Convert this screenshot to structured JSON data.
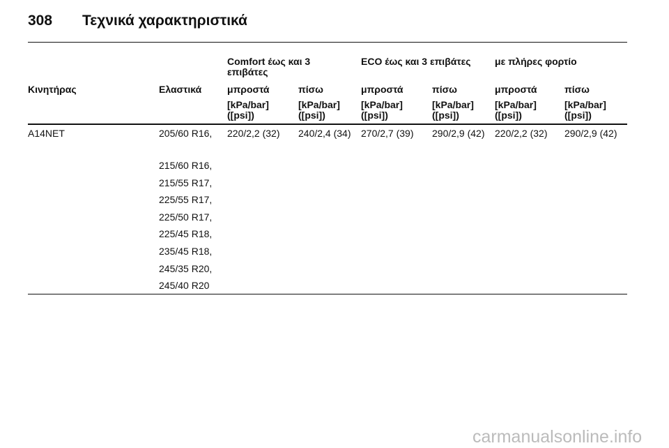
{
  "header": {
    "page_number": "308",
    "title": "Τεχνικά χαρακτηριστικά"
  },
  "table": {
    "group_headers": [
      "Comfort έως και 3 επιβάτες",
      "ECO έως και 3 επιβάτες",
      "με πλήρες φορτίο"
    ],
    "columns": [
      "Κινητήρας",
      "Ελαστικά",
      "μπροστά",
      "πίσω",
      "μπροστά",
      "πίσω",
      "μπροστά",
      "πίσω"
    ],
    "units": [
      "[kPa/bar] ([psi])",
      "[kPa/bar] ([psi])",
      "[kPa/bar] ([psi])",
      "[kPa/bar] ([psi])",
      "[kPa/bar] ([psi])",
      "[kPa/bar] ([psi])"
    ],
    "rows": [
      {
        "engine": "A14NET",
        "tyres": [
          "205/60 R16,",
          "215/60 R16,",
          "215/55 R17,",
          "225/55 R17,",
          "225/50 R17,",
          "225/45 R18,",
          "235/45 R18,",
          "245/35 R20,",
          "245/40 R20"
        ],
        "pressures": [
          "220/2,2 (32)",
          "240/2,4 (34)",
          "270/2,7 (39)",
          "290/2,9 (42)",
          "220/2,2 (32)",
          "290/2,9 (42)"
        ]
      }
    ]
  },
  "watermark": "carmanualsonline.info"
}
